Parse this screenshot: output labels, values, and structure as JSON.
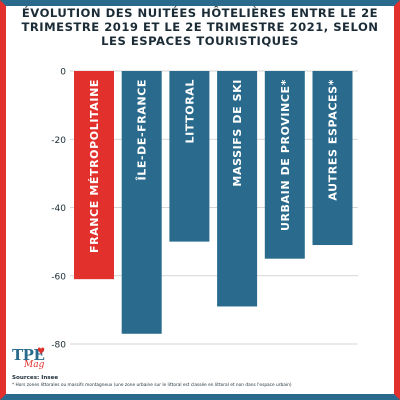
{
  "title": "Évolution des nuitées hôtelières entre le 2e trimestre 2019 et le 2e trimestre 2021, selon les espaces touristiques",
  "sources": "Sources: Insee",
  "footnote": "* Hors zones littorales ou massifs montagneux (une zone urbaine sur le littoral est classée en littoral et non dans l'espace urbain)",
  "logo": {
    "main": "TPE",
    "sub": "Mag"
  },
  "colors": {
    "highlight": "#e2302d",
    "bar": "#2a6b8d",
    "text": "#1b2c36",
    "grid": "#c9c9c9"
  },
  "chart_data": {
    "type": "bar",
    "orientation": "vertical",
    "title": "Évolution des nuitées hôtelières entre le 2e trimestre 2019 et le 2e trimestre 2021, selon les espaces touristiques",
    "categories": [
      "France Métropolitaine",
      "Île-de-France",
      "Littoral",
      "Massifs de ski",
      "Urbain de province*",
      "Autres espaces*"
    ],
    "values": [
      -61,
      -77,
      -50,
      -69,
      -55,
      -51
    ],
    "highlight_index": 0,
    "ylim": [
      -80,
      0
    ],
    "yticks": [
      0,
      -20,
      -40,
      -60,
      -80
    ],
    "category_labels_inside_bars": true,
    "grid": true,
    "legend": "none"
  }
}
